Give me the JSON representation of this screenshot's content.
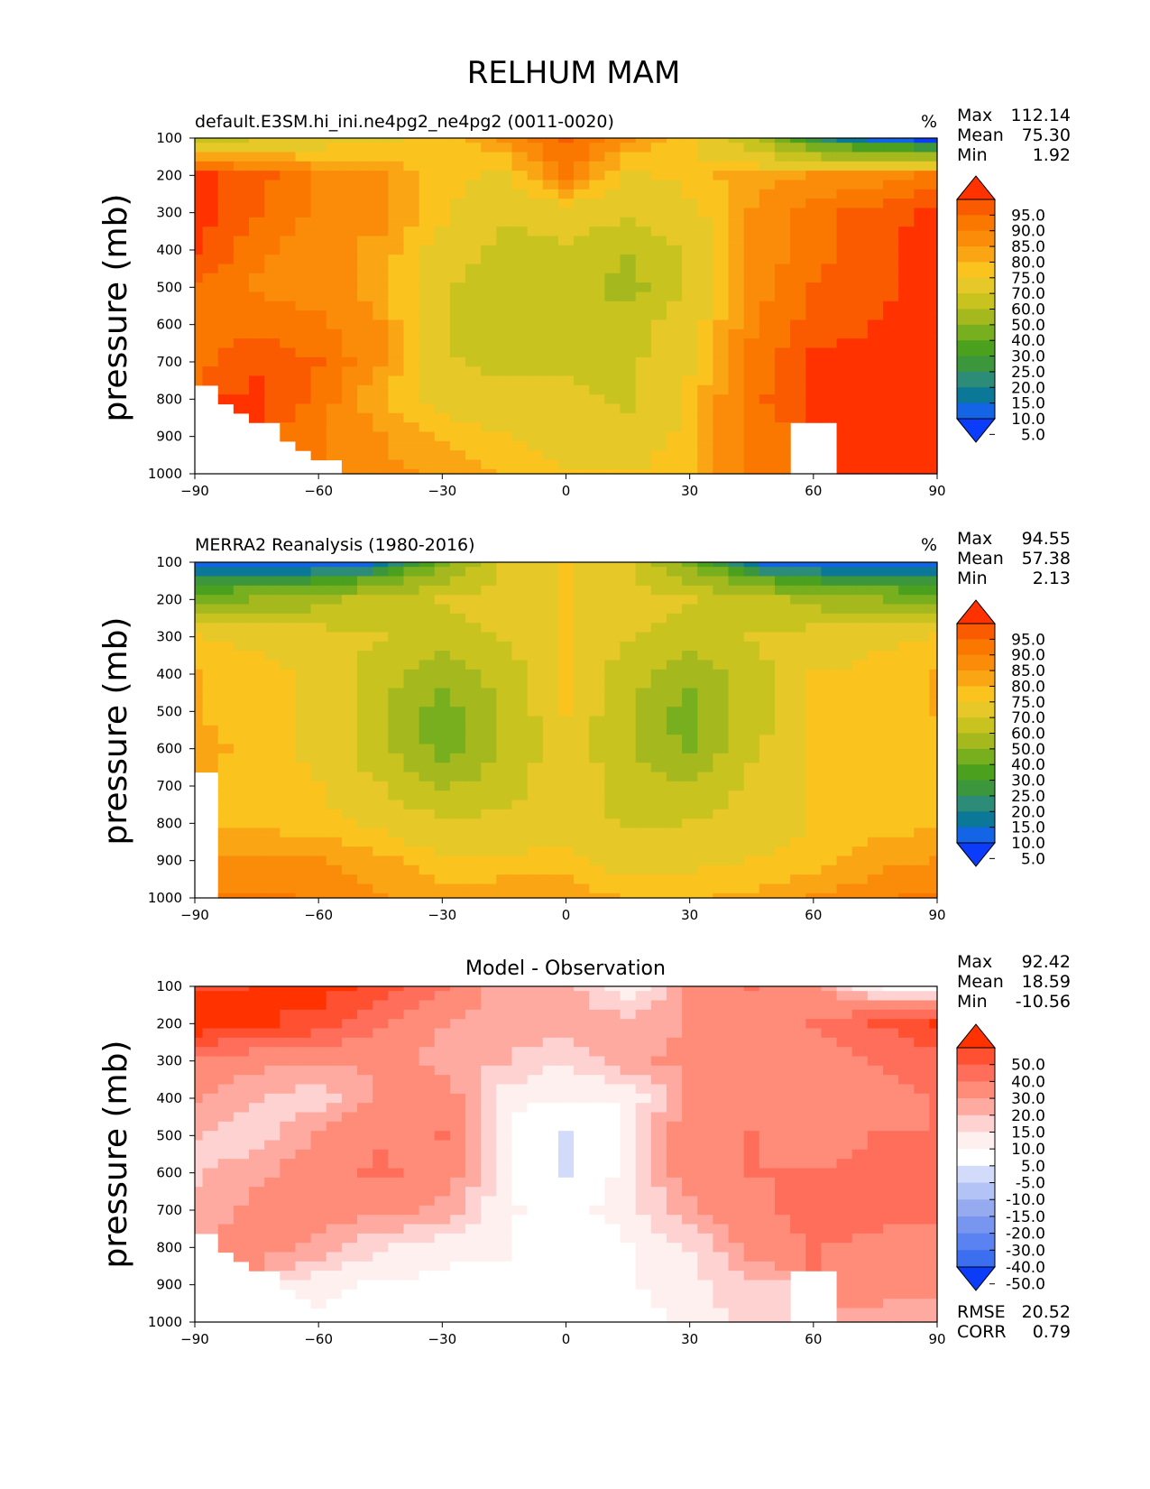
{
  "suptitle": "RELHUM MAM",
  "x_ticks": [
    "−90",
    "−60",
    "−30",
    "0",
    "30",
    "60",
    "90"
  ],
  "y_ticks": [
    "100",
    "200",
    "300",
    "400",
    "500",
    "600",
    "700",
    "800",
    "900",
    "1000"
  ],
  "ylabel": "pressure (mb)",
  "colors": {
    "abs": [
      "#0a3cfa",
      "#1464e6",
      "#0a7896",
      "#2d8c78",
      "#3c963c",
      "#4ba01e",
      "#78af1e",
      "#a5b91e",
      "#c8c31e",
      "#e6c828",
      "#fac31e",
      "#faa514",
      "#fa8c0a",
      "#fa7800",
      "#fa5a00",
      "#ff3200"
    ],
    "diff": [
      "#0a3cfa",
      "#3c6ef0",
      "#5a82f0",
      "#7896f0",
      "#96aaf0",
      "#b4c3f5",
      "#d2dcfa",
      "#ffffff",
      "#fff0f0",
      "#ffd2d2",
      "#ffaaa0",
      "#ff8c78",
      "#ff6e5a",
      "#ff5032",
      "#ff3200"
    ]
  },
  "stats_labels": {
    "max": "Max",
    "mean": "Mean",
    "min": "Min",
    "rmse": "RMSE",
    "corr": "CORR"
  },
  "panels": [
    {
      "title": "default.E3SM.hi_ini.ne4pg2_ne4pg2 (0011-0020)",
      "units": "%",
      "max": "112.14",
      "mean": "75.30",
      "min": "1.92",
      "colorbar_labels": [
        "95.0",
        "90.0",
        "85.0",
        "80.0",
        "75.0",
        "70.0",
        "60.0",
        "50.0",
        "40.0",
        "30.0",
        "25.0",
        "20.0",
        "15.0",
        "10.0",
        "5.0"
      ]
    },
    {
      "title": "MERRA2 Reanalysis (1980-2016)",
      "units": "%",
      "max": "94.55",
      "mean": "57.38",
      "min": "2.13",
      "colorbar_labels": [
        "95.0",
        "90.0",
        "85.0",
        "80.0",
        "75.0",
        "70.0",
        "60.0",
        "50.0",
        "40.0",
        "30.0",
        "25.0",
        "20.0",
        "15.0",
        "10.0",
        "5.0"
      ]
    },
    {
      "title": "Model - Observation",
      "units": "",
      "max": "92.42",
      "mean": "18.59",
      "min": "-10.56",
      "rmse": "20.52",
      "corr": "0.79",
      "colorbar_labels": [
        "50.0",
        "40.0",
        "30.0",
        "20.0",
        "15.0",
        "10.0",
        "5.0",
        "-5.0",
        "-10.0",
        "-15.0",
        "-20.0",
        "-30.0",
        "-40.0",
        "-50.0"
      ]
    }
  ],
  "chart_data": [
    {
      "type": "heatmap",
      "title": "default.E3SM.hi_ini.ne4pg2_ne4pg2 (0011-0020)",
      "xlabel": "",
      "ylabel": "pressure (mb)",
      "xlim": [
        -90,
        90
      ],
      "ylim": [
        1000,
        100
      ],
      "x": [
        -90,
        -75,
        -60,
        -45,
        -30,
        -15,
        0,
        15,
        30,
        45,
        60,
        75,
        90
      ],
      "y": [
        100,
        200,
        300,
        400,
        500,
        600,
        700,
        800,
        900,
        1000
      ],
      "levels": [
        5,
        10,
        15,
        20,
        25,
        30,
        40,
        50,
        60,
        70,
        75,
        80,
        85,
        90,
        95
      ],
      "z": [
        [
          55,
          60,
          65,
          68,
          72,
          80,
          90,
          80,
          70,
          50,
          20,
          8,
          3
        ],
        [
          97,
          92,
          84,
          80,
          72,
          68,
          88,
          68,
          72,
          78,
          80,
          82,
          86
        ],
        [
          97,
          90,
          84,
          82,
          72,
          62,
          66,
          62,
          68,
          80,
          88,
          92,
          97
        ],
        [
          97,
          86,
          82,
          78,
          66,
          56,
          58,
          50,
          62,
          80,
          88,
          94,
          97
        ],
        [
          88,
          84,
          82,
          78,
          62,
          52,
          58,
          45,
          62,
          82,
          90,
          94,
          97
        ],
        [
          88,
          88,
          86,
          80,
          60,
          52,
          55,
          55,
          66,
          84,
          92,
          95,
          97
        ],
        [
          88,
          94,
          90,
          80,
          62,
          56,
          58,
          58,
          68,
          86,
          96,
          97,
          97
        ],
        [
          null,
          96,
          88,
          76,
          66,
          66,
          62,
          58,
          72,
          88,
          97,
          97,
          97
        ],
        [
          null,
          null,
          86,
          80,
          74,
          70,
          66,
          64,
          72,
          88,
          null,
          97,
          97
        ],
        [
          null,
          null,
          null,
          82,
          78,
          74,
          70,
          70,
          74,
          86,
          null,
          97,
          97
        ]
      ]
    },
    {
      "type": "heatmap",
      "title": "MERRA2 Reanalysis (1980-2016)",
      "xlabel": "",
      "ylabel": "pressure (mb)",
      "xlim": [
        -90,
        90
      ],
      "ylim": [
        1000,
        100
      ],
      "x": [
        -90,
        -75,
        -60,
        -45,
        -30,
        -15,
        0,
        15,
        30,
        45,
        60,
        75,
        90
      ],
      "y": [
        100,
        200,
        300,
        400,
        500,
        600,
        700,
        800,
        900,
        1000
      ],
      "levels": [
        5,
        10,
        15,
        20,
        25,
        30,
        40,
        50,
        60,
        70,
        75,
        80,
        85,
        90,
        95
      ],
      "z": [
        [
          8,
          5,
          5,
          10,
          35,
          60,
          70,
          60,
          35,
          10,
          5,
          5,
          5
        ],
        [
          35,
          40,
          45,
          55,
          60,
          65,
          70,
          65,
          60,
          55,
          45,
          40,
          35
        ],
        [
          70,
          68,
          65,
          60,
          55,
          60,
          70,
          60,
          55,
          60,
          65,
          68,
          70
        ],
        [
          75,
          72,
          68,
          55,
          42,
          55,
          70,
          55,
          42,
          55,
          70,
          72,
          75
        ],
        [
          75,
          74,
          68,
          52,
          35,
          50,
          70,
          50,
          35,
          55,
          70,
          72,
          75
        ],
        [
          76,
          74,
          68,
          52,
          36,
          50,
          68,
          50,
          38,
          58,
          70,
          72,
          74
        ],
        [
          null,
          74,
          70,
          60,
          48,
          56,
          66,
          56,
          50,
          62,
          70,
          72,
          72
        ],
        [
          null,
          74,
          72,
          68,
          62,
          62,
          66,
          58,
          60,
          66,
          70,
          72,
          74
        ],
        [
          null,
          80,
          80,
          76,
          72,
          72,
          72,
          66,
          68,
          70,
          72,
          78,
          80
        ],
        [
          null,
          86,
          84,
          80,
          76,
          78,
          78,
          74,
          74,
          76,
          80,
          84,
          86
        ]
      ]
    },
    {
      "type": "heatmap",
      "title": "Model - Observation",
      "xlabel": "",
      "ylabel": "pressure (mb)",
      "xlim": [
        -90,
        90
      ],
      "ylim": [
        1000,
        100
      ],
      "x": [
        -90,
        -75,
        -60,
        -45,
        -30,
        -15,
        0,
        15,
        30,
        45,
        60,
        75,
        90
      ],
      "y": [
        100,
        200,
        300,
        400,
        500,
        600,
        700,
        800,
        900,
        1000
      ],
      "levels": [
        -50,
        -40,
        -30,
        -20,
        -15,
        -10,
        -5,
        5,
        10,
        15,
        20,
        30,
        40,
        50
      ],
      "z": [
        [
          47,
          50,
          55,
          45,
          30,
          15,
          18,
          5,
          20,
          30,
          20,
          5,
          0
        ],
        [
          60,
          52,
          45,
          30,
          20,
          18,
          18,
          18,
          20,
          25,
          30,
          40,
          50
        ],
        [
          25,
          22,
          20,
          22,
          18,
          15,
          10,
          18,
          22,
          25,
          25,
          30,
          35
        ],
        [
          20,
          15,
          12,
          20,
          25,
          8,
          5,
          6,
          20,
          28,
          22,
          28,
          30
        ],
        [
          15,
          12,
          20,
          28,
          30,
          6,
          -8,
          6,
          28,
          30,
          25,
          30,
          30
        ],
        [
          14,
          18,
          25,
          32,
          24,
          8,
          -6,
          8,
          25,
          30,
          30,
          32,
          30
        ],
        [
          16,
          22,
          24,
          22,
          18,
          6,
          2,
          8,
          18,
          28,
          34,
          32,
          32
        ],
        [
          null,
          22,
          18,
          10,
          6,
          6,
          0,
          4,
          10,
          22,
          30,
          28,
          26
        ],
        [
          null,
          null,
          6,
          4,
          4,
          2,
          2,
          4,
          8,
          14,
          null,
          24,
          22
        ],
        [
          null,
          null,
          null,
          2,
          2,
          4,
          2,
          2,
          6,
          12,
          null,
          16,
          16
        ]
      ]
    }
  ]
}
